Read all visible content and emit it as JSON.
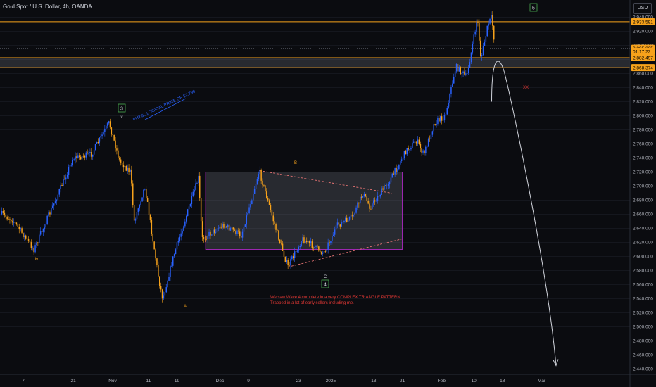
{
  "header": {
    "title": "Gold Spot / U.S. Dollar, 4h, OANDA",
    "currency": "USD"
  },
  "colors": {
    "up": "#2962ff",
    "down": "#f7a21b",
    "level": "#f7a21b",
    "annotation": "#e53935",
    "boxBorder": "#9c27b0",
    "projection": "#d1d4dc"
  },
  "y_ticks": [
    "2,940.000",
    "2,920.000",
    "2,900.000",
    "2,880.000",
    "2,860.000",
    "2,840.000",
    "2,820.000",
    "2,800.000",
    "2,780.000",
    "2,760.000",
    "2,740.000",
    "2,720.000",
    "2,700.000",
    "2,680.000",
    "2,660.000",
    "2,640.000",
    "2,620.000",
    "2,600.000",
    "2,580.000",
    "2,560.000",
    "2,540.000",
    "2,520.000",
    "2,500.000",
    "2,480.000",
    "2,460.000",
    "2,440.000"
  ],
  "x_ticks": [
    "7",
    "21",
    "Nov",
    "11",
    "19",
    "Dec",
    "9",
    "23",
    "2025",
    "13",
    "21",
    "Feb",
    "10",
    "18",
    "Mar"
  ],
  "price_tags": [
    {
      "value": 2933.591,
      "text": "2,933.591"
    },
    {
      "value": 2895.865,
      "text": "2,895.865"
    },
    {
      "value": 2891.5,
      "text": "01:17:22"
    },
    {
      "value": 2882.497,
      "text": "2,882.497"
    },
    {
      "value": 2868.374,
      "text": "2,868.374"
    }
  ],
  "levels": [
    2933.591,
    2882.497,
    2868.374
  ],
  "wave_labels": {
    "w3": "3",
    "w4": "4",
    "w5": "5",
    "v": "v",
    "iv": "iv",
    "a": "A",
    "b": "B",
    "c": "C",
    "xx": "XX"
  },
  "annotations": {
    "psych": "PHYSOLOGICAL PRICE OF $2,790",
    "note_line1": "We saw Wave 4 complete in a very COMPLEX TRIANGLE PATTERN.",
    "note_line2": "Trapped in a lot of early sellers including me."
  },
  "chart_data": {
    "type": "candlestick",
    "title": "Gold Spot / U.S. Dollar, 4h, OANDA",
    "currency": "USD",
    "ylim": [
      2430,
      2950
    ],
    "x_tick_labels": [
      "7",
      "21",
      "Nov",
      "11",
      "19",
      "Dec",
      "9",
      "23",
      "2025",
      "13",
      "21",
      "Feb",
      "10",
      "18",
      "Mar"
    ],
    "price_path": [
      {
        "x": "Oct 1",
        "y": 2660
      },
      {
        "x": "Oct 4",
        "y": 2652
      },
      {
        "x": "Oct 10",
        "y": 2610
      },
      {
        "x": "Oct 16",
        "y": 2680
      },
      {
        "x": "Oct 21",
        "y": 2740
      },
      {
        "x": "Oct 26",
        "y": 2745
      },
      {
        "x": "Oct 31",
        "y": 2790
      },
      {
        "x": "Nov 3",
        "y": 2735
      },
      {
        "x": "Nov 6",
        "y": 2720
      },
      {
        "x": "Nov 7",
        "y": 2650
      },
      {
        "x": "Nov 10",
        "y": 2700
      },
      {
        "x": "Nov 14",
        "y": 2565
      },
      {
        "x": "Nov 15",
        "y": 2540
      },
      {
        "x": "Nov 18",
        "y": 2600
      },
      {
        "x": "Nov 25",
        "y": 2712
      },
      {
        "x": "Nov 26",
        "y": 2625
      },
      {
        "x": "Dec 2",
        "y": 2645
      },
      {
        "x": "Dec 7",
        "y": 2630
      },
      {
        "x": "Dec 12",
        "y": 2722
      },
      {
        "x": "Dec 16",
        "y": 2650
      },
      {
        "x": "Dec 20",
        "y": 2585
      },
      {
        "x": "Dec 24",
        "y": 2625
      },
      {
        "x": "Dec 30",
        "y": 2605
      },
      {
        "x": "Jan 3",
        "y": 2645
      },
      {
        "x": "Jan 7",
        "y": 2655
      },
      {
        "x": "Jan 10",
        "y": 2690
      },
      {
        "x": "Jan 12",
        "y": 2670
      },
      {
        "x": "Jan 18",
        "y": 2712
      },
      {
        "x": "Jan 22",
        "y": 2750
      },
      {
        "x": "Jan 25",
        "y": 2765
      },
      {
        "x": "Jan 27",
        "y": 2745
      },
      {
        "x": "Jan 30",
        "y": 2790
      },
      {
        "x": "Feb 2",
        "y": 2800
      },
      {
        "x": "Feb 5",
        "y": 2870
      },
      {
        "x": "Feb 7",
        "y": 2860
      },
      {
        "x": "Feb 8",
        "y": 2855
      },
      {
        "x": "Feb 10",
        "y": 2910
      },
      {
        "x": "Feb 11",
        "y": 2940
      },
      {
        "x": "Feb 12",
        "y": 2880
      },
      {
        "x": "Feb 14",
        "y": 2930
      },
      {
        "x": "Feb 15",
        "y": 2940
      },
      {
        "x": "Feb 16",
        "y": 2895
      }
    ],
    "horizontal_levels": [
      2933.591,
      2882.497,
      2868.374
    ],
    "range_box": {
      "from": "Nov 27",
      "to": "Jan 21",
      "top": 2720,
      "bottom": 2610
    },
    "triangle": [
      {
        "from": {
          "x": "Dec 12",
          "y": 2722
        },
        "to": {
          "x": "Jan 18",
          "y": 2690
        }
      },
      {
        "from": {
          "x": "Dec 20",
          "y": 2585
        },
        "to": {
          "x": "Jan 21",
          "y": 2625
        }
      }
    ],
    "projection": {
      "from": {
        "x": "Feb 15",
        "y": 2820
      },
      "peak": {
        "x": "Feb 16",
        "y": 2875
      },
      "to": {
        "x": "Mar 5",
        "y": 2445
      }
    },
    "wave_labels": [
      {
        "label": "v",
        "x": "Oct 31",
        "y": 2790
      },
      {
        "label": "3",
        "x": "Oct 31",
        "y": 2805
      },
      {
        "label": "iv",
        "x": "Oct 10",
        "y": 2605
      },
      {
        "label": "A",
        "x": "Nov 15",
        "y": 2535
      },
      {
        "label": "B",
        "x": "Dec 12",
        "y": 2727
      },
      {
        "label": "C",
        "x": "Dec 20",
        "y": 2580
      },
      {
        "label": "4",
        "x": "Dec 20",
        "y": 2572
      },
      {
        "label": "5",
        "x": "Feb 11",
        "y": 2950
      },
      {
        "label": "XX",
        "x": "Feb 9",
        "y": 2848
      }
    ]
  }
}
